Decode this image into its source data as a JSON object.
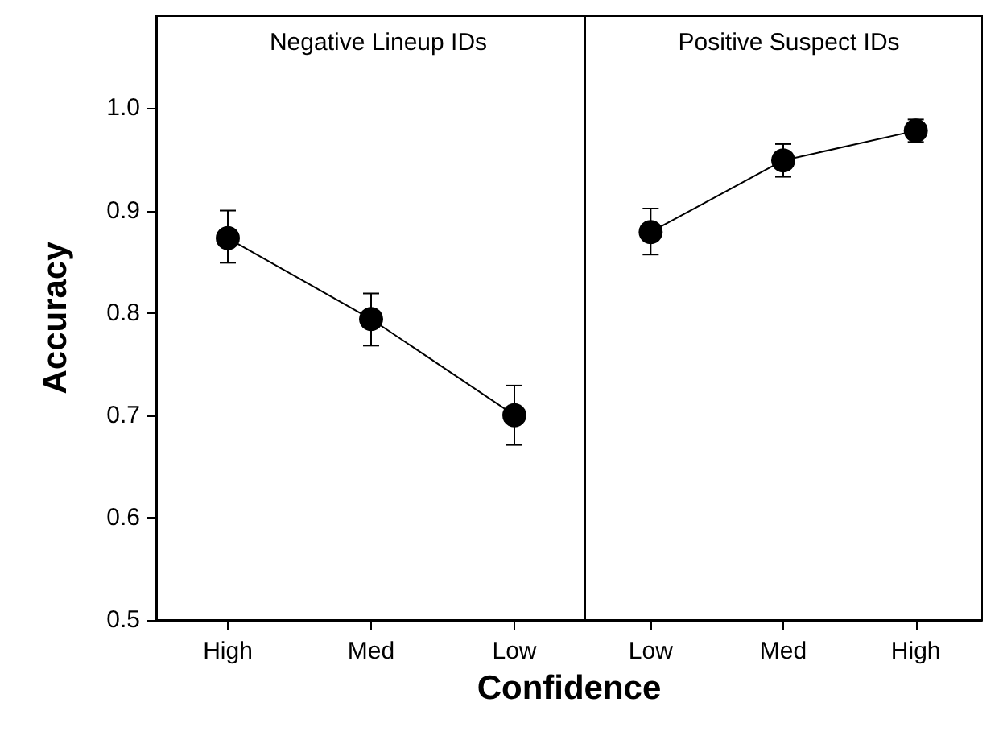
{
  "chart_data": [
    {
      "type": "line",
      "title": "Negative Lineup IDs",
      "xlabel": "Confidence",
      "ylabel": "Accuracy",
      "categories": [
        "High",
        "Med",
        "Low"
      ],
      "series": [
        {
          "color": "#000000",
          "values": [
            0.873,
            0.794,
            0.7
          ],
          "errors": [
            [
              0.849,
              0.9
            ],
            [
              0.768,
              0.819
            ],
            [
              0.671,
              0.729
            ]
          ]
        }
      ],
      "ylim": [
        0.5,
        1.09
      ],
      "yticks": [
        0.5,
        0.6,
        0.7,
        0.8,
        0.9,
        {
          "value": 1,
          "label": "1.0"
        }
      ],
      "marker": "circle",
      "line_style": "solid",
      "grid": false
    },
    {
      "type": "line",
      "title": "Positive Suspect IDs",
      "categories": [
        "Low",
        "Med",
        "High"
      ],
      "series": [
        {
          "color": "#000000",
          "values": [
            0.879,
            0.949,
            0.978
          ],
          "errors": [
            [
              0.857,
              0.902
            ],
            [
              0.933,
              0.965
            ],
            [
              0.967,
              0.989
            ]
          ]
        }
      ],
      "ylim": [
        0.5,
        1.09
      ],
      "tick_labels": "x",
      "marker": "circle",
      "line_style": "solid",
      "grid": false
    }
  ]
}
